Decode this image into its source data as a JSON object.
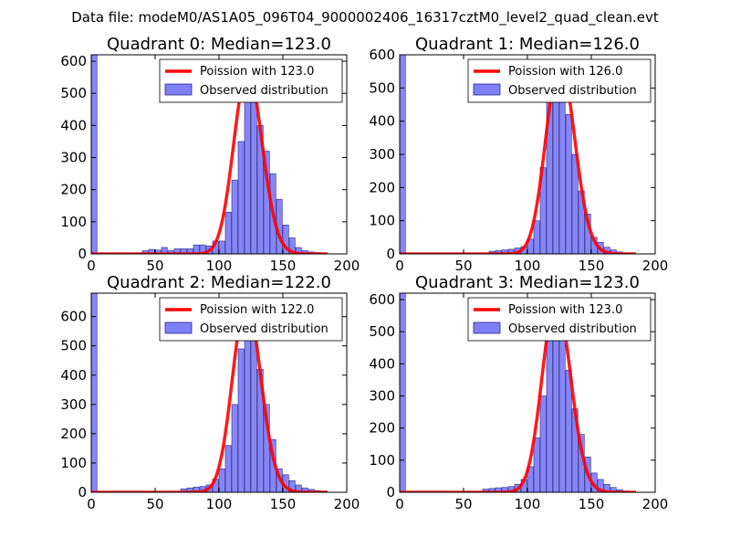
{
  "figure": {
    "suptitle": "Data file: modeM0/AS1A05_096T04_9000002406_16317cztM0_level2_quad_clean.evt"
  },
  "colors": {
    "bar_fill": "#7f7ff7",
    "bar_edge": "#2a2a8a",
    "fit_line": "#ff0000",
    "legend_edge": "#000000"
  },
  "chart_data": [
    {
      "type": "bar",
      "title": "Quadrant 0: Median=123.0",
      "median": 123.0,
      "xlim": [
        0,
        200
      ],
      "ylim": [
        0,
        620
      ],
      "xticks": [
        0,
        50,
        100,
        150,
        200
      ],
      "yticks": [
        0,
        100,
        200,
        300,
        400,
        500,
        600
      ],
      "bin_width": 4.5,
      "bins": [
        [
          0,
          620
        ],
        [
          40,
          10
        ],
        [
          45,
          14
        ],
        [
          50,
          12
        ],
        [
          55,
          20
        ],
        [
          60,
          10
        ],
        [
          65,
          16
        ],
        [
          70,
          16
        ],
        [
          75,
          16
        ],
        [
          80,
          28
        ],
        [
          85,
          28
        ],
        [
          90,
          25
        ],
        [
          95,
          40
        ],
        [
          100,
          40
        ],
        [
          105,
          130
        ],
        [
          110,
          230
        ],
        [
          115,
          350
        ],
        [
          120,
          570
        ],
        [
          125,
          480
        ],
        [
          130,
          400
        ],
        [
          135,
          320
        ],
        [
          140,
          250
        ],
        [
          145,
          170
        ],
        [
          150,
          90
        ],
        [
          155,
          50
        ],
        [
          160,
          20
        ],
        [
          165,
          10
        ],
        [
          170,
          6
        ],
        [
          175,
          4
        ]
      ],
      "legend": [
        "Poission with 123.0",
        "Observed distribution"
      ]
    },
    {
      "type": "bar",
      "title": "Quadrant 1: Median=126.0",
      "median": 126.0,
      "xlim": [
        0,
        200
      ],
      "ylim": [
        0,
        600
      ],
      "xticks": [
        0,
        50,
        100,
        150,
        200
      ],
      "yticks": [
        0,
        100,
        200,
        300,
        400,
        500,
        600
      ],
      "bin_width": 4.5,
      "bins": [
        [
          0,
          600
        ],
        [
          70,
          8
        ],
        [
          75,
          10
        ],
        [
          80,
          12
        ],
        [
          85,
          14
        ],
        [
          90,
          18
        ],
        [
          95,
          22
        ],
        [
          100,
          45
        ],
        [
          105,
          100
        ],
        [
          110,
          260
        ],
        [
          115,
          480
        ],
        [
          120,
          580
        ],
        [
          125,
          540
        ],
        [
          130,
          420
        ],
        [
          135,
          300
        ],
        [
          140,
          190
        ],
        [
          145,
          120
        ],
        [
          150,
          50
        ],
        [
          155,
          35
        ],
        [
          160,
          20
        ],
        [
          165,
          12
        ],
        [
          170,
          6
        ],
        [
          175,
          3
        ]
      ],
      "legend": [
        "Poission with 126.0",
        "Observed distribution"
      ]
    },
    {
      "type": "bar",
      "title": "Quadrant 2: Median=122.0",
      "median": 122.0,
      "xlim": [
        0,
        200
      ],
      "ylim": [
        0,
        680
      ],
      "xticks": [
        0,
        50,
        100,
        150,
        200
      ],
      "yticks": [
        0,
        100,
        200,
        300,
        400,
        500,
        600
      ],
      "bin_width": 4.5,
      "bins": [
        [
          0,
          680
        ],
        [
          70,
          12
        ],
        [
          75,
          15
        ],
        [
          80,
          18
        ],
        [
          85,
          20
        ],
        [
          90,
          25
        ],
        [
          95,
          45
        ],
        [
          100,
          80
        ],
        [
          105,
          160
        ],
        [
          110,
          300
        ],
        [
          115,
          490
        ],
        [
          120,
          650
        ],
        [
          125,
          580
        ],
        [
          130,
          420
        ],
        [
          135,
          300
        ],
        [
          140,
          180
        ],
        [
          145,
          80
        ],
        [
          150,
          60
        ],
        [
          155,
          40
        ],
        [
          160,
          25
        ],
        [
          165,
          15
        ],
        [
          170,
          10
        ],
        [
          175,
          6
        ],
        [
          180,
          3
        ]
      ],
      "legend": [
        "Poission with 122.0",
        "Observed distribution"
      ]
    },
    {
      "type": "bar",
      "title": "Quadrant 3: Median=123.0",
      "median": 123.0,
      "xlim": [
        0,
        200
      ],
      "ylim": [
        0,
        620
      ],
      "xticks": [
        0,
        50,
        100,
        150,
        200
      ],
      "yticks": [
        0,
        100,
        200,
        300,
        400,
        500,
        600
      ],
      "bin_width": 4.5,
      "bins": [
        [
          0,
          620
        ],
        [
          65,
          10
        ],
        [
          70,
          12
        ],
        [
          75,
          14
        ],
        [
          80,
          15
        ],
        [
          85,
          18
        ],
        [
          90,
          25
        ],
        [
          95,
          40
        ],
        [
          100,
          80
        ],
        [
          105,
          170
        ],
        [
          110,
          300
        ],
        [
          115,
          520
        ],
        [
          120,
          600
        ],
        [
          125,
          520
        ],
        [
          130,
          380
        ],
        [
          135,
          260
        ],
        [
          140,
          180
        ],
        [
          145,
          110
        ],
        [
          150,
          60
        ],
        [
          155,
          40
        ],
        [
          160,
          25
        ],
        [
          165,
          15
        ],
        [
          170,
          8
        ],
        [
          175,
          4
        ]
      ],
      "legend": [
        "Poission with 123.0",
        "Observed distribution"
      ]
    }
  ]
}
